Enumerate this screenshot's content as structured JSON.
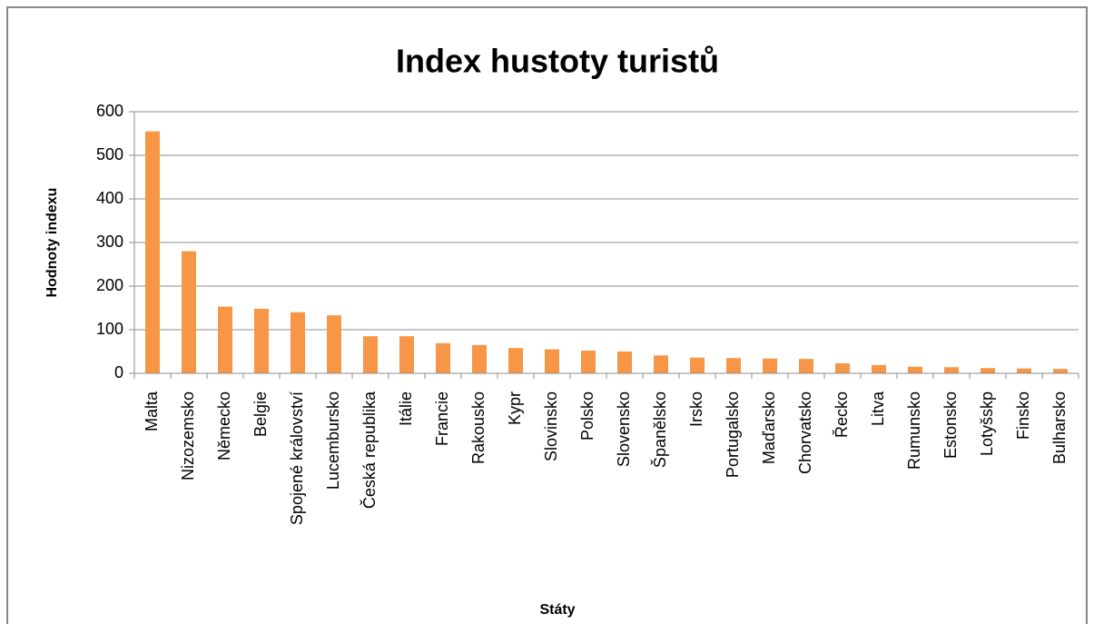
{
  "chart_data": {
    "type": "bar",
    "title": "Index hustoty turistů",
    "x_label": "Státy",
    "y_label": "Hodnoty indexu",
    "categories": [
      "Malta",
      "Nizozemsko",
      "Německo",
      "Belgie",
      "Spojené království",
      "Lucembursko",
      "Česká republika",
      "Itálie",
      "Francie",
      "Rakousko",
      "Kypr",
      "Slovinsko",
      "Polsko",
      "Slovensko",
      "Španělsko",
      "Irsko",
      "Portugalsko",
      "Maďarsko",
      "Chorvatsko",
      "Řecko",
      "Litva",
      "Rumunsko",
      "Estonsko",
      "Lotyšskp",
      "Finsko",
      "Bulharsko"
    ],
    "values": [
      555,
      280,
      153,
      148,
      140,
      133,
      85,
      85,
      69,
      65,
      58,
      55,
      52,
      50,
      41,
      36,
      35,
      34,
      33,
      23,
      19,
      15,
      14,
      12,
      11,
      10
    ],
    "color": "#f79646",
    "ylim": [
      0,
      600
    ],
    "yticks": [
      0,
      100,
      200,
      300,
      400,
      500,
      600
    ],
    "grid": true
  }
}
